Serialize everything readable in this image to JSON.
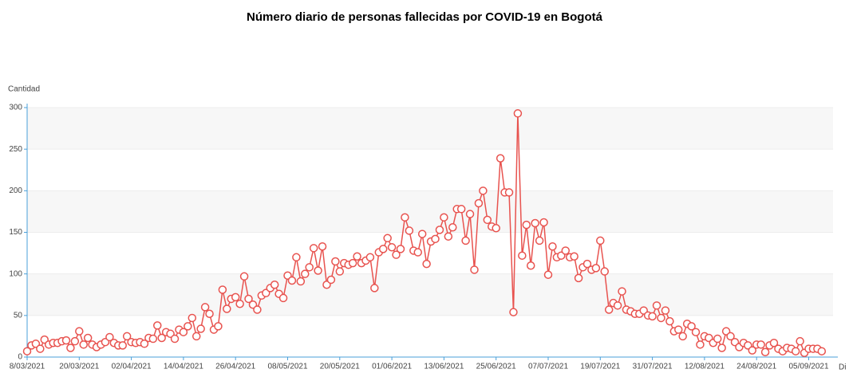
{
  "chart_data": {
    "type": "line",
    "title": "Número diario de personas fallecidas por COVID-19 en Bogotá",
    "y_label": "Cantidad",
    "x_label": "Di",
    "categories": [
      "8/03/2021",
      null,
      null,
      null,
      null,
      null,
      null,
      null,
      null,
      null,
      null,
      null,
      "20/03/2021",
      null,
      null,
      null,
      null,
      null,
      null,
      null,
      null,
      null,
      null,
      null,
      "02/04/2021",
      null,
      null,
      null,
      null,
      null,
      null,
      null,
      null,
      null,
      null,
      null,
      "14/04/2021",
      null,
      null,
      null,
      null,
      null,
      null,
      null,
      null,
      null,
      null,
      null,
      "26/04/2021",
      null,
      null,
      null,
      null,
      null,
      null,
      null,
      null,
      null,
      null,
      null,
      "08/05/2021",
      null,
      null,
      null,
      null,
      null,
      null,
      null,
      null,
      null,
      null,
      null,
      "20/05/2021",
      null,
      null,
      null,
      null,
      null,
      null,
      null,
      null,
      null,
      null,
      null,
      "01/06/2021",
      null,
      null,
      null,
      null,
      null,
      null,
      null,
      null,
      null,
      null,
      null,
      "13/06/2021",
      null,
      null,
      null,
      null,
      null,
      null,
      null,
      null,
      null,
      null,
      null,
      "25/06/2021",
      null,
      null,
      null,
      null,
      null,
      null,
      null,
      null,
      null,
      null,
      null,
      "07/07/2021",
      null,
      null,
      null,
      null,
      null,
      null,
      null,
      null,
      null,
      null,
      null,
      "19/07/2021",
      null,
      null,
      null,
      null,
      null,
      null,
      null,
      null,
      null,
      null,
      null,
      "31/07/2021",
      null,
      null,
      null,
      null,
      null,
      null,
      null,
      null,
      null,
      null,
      null,
      "12/08/2021",
      null,
      null,
      null,
      null,
      null,
      null,
      null,
      null,
      null,
      null,
      null,
      "24/08/2021",
      null,
      null,
      null,
      null,
      null,
      null,
      null,
      null,
      null,
      null,
      null,
      "05/09/2021",
      null,
      null,
      null
    ],
    "series": [
      {
        "name": "Cantidad",
        "color": "#e8534f",
        "values": [
          7,
          14,
          16,
          10,
          21,
          15,
          17,
          17,
          19,
          20,
          11,
          19,
          31,
          15,
          23,
          15,
          12,
          15,
          18,
          24,
          17,
          14,
          14,
          25,
          18,
          17,
          18,
          16,
          23,
          22,
          38,
          23,
          30,
          28,
          22,
          33,
          30,
          37,
          47,
          25,
          34,
          60,
          52,
          33,
          37,
          81,
          58,
          70,
          72,
          64,
          97,
          70,
          63,
          57,
          74,
          77,
          83,
          87,
          76,
          71,
          98,
          92,
          120,
          91,
          100,
          108,
          131,
          104,
          133,
          87,
          93,
          115,
          103,
          113,
          111,
          113,
          121,
          113,
          116,
          120,
          83,
          126,
          130,
          143,
          132,
          123,
          130,
          168,
          152,
          128,
          126,
          148,
          112,
          139,
          142,
          153,
          168,
          145,
          156,
          178,
          178,
          140,
          172,
          105,
          185,
          200,
          165,
          157,
          155,
          239,
          198,
          198,
          54,
          293,
          122,
          159,
          110,
          161,
          140,
          162,
          99,
          133,
          120,
          122,
          128,
          120,
          121,
          95,
          108,
          112,
          105,
          107,
          140,
          103,
          57,
          65,
          62,
          79,
          57,
          55,
          52,
          52,
          56,
          50,
          49,
          62,
          47,
          56,
          43,
          31,
          33,
          25,
          40,
          37,
          30,
          15,
          25,
          23,
          17,
          22,
          11,
          31,
          25,
          18,
          12,
          17,
          14,
          8,
          15,
          15,
          6,
          14,
          17,
          10,
          7,
          11,
          10,
          7,
          19,
          5,
          10,
          10,
          10,
          7
        ]
      }
    ],
    "ylim": [
      0,
      300
    ],
    "yticks": [
      0,
      50,
      100,
      150,
      200,
      250,
      300
    ],
    "grid": true
  }
}
